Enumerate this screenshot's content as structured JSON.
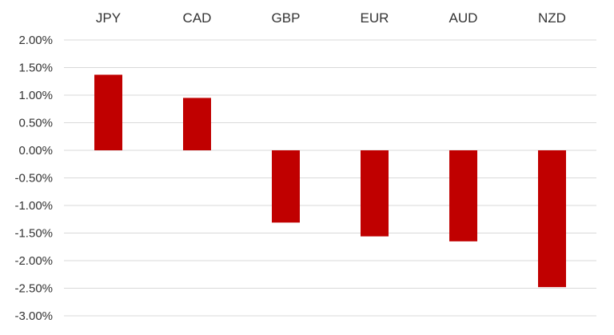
{
  "chart_data": {
    "type": "bar",
    "title": "",
    "xlabel": "",
    "ylabel": "",
    "categories": [
      "JPY",
      "CAD",
      "GBP",
      "EUR",
      "AUD",
      "NZD"
    ],
    "values": [
      1.37,
      0.95,
      -1.31,
      -1.56,
      -1.65,
      -2.48
    ],
    "unit": "%",
    "ylim": [
      -3.0,
      2.0
    ],
    "ytick_step": 0.5,
    "yticks": [
      "2.00%",
      "1.50%",
      "1.00%",
      "0.50%",
      "0.00%",
      "-0.50%",
      "-1.00%",
      "-1.50%",
      "-2.00%",
      "-2.50%",
      "-3.00%"
    ],
    "category_axis_position": "top",
    "grid": true,
    "legend": false,
    "colors": {
      "bar": "#c00000",
      "grid": "#d9d9d9",
      "text": "#333333"
    }
  }
}
